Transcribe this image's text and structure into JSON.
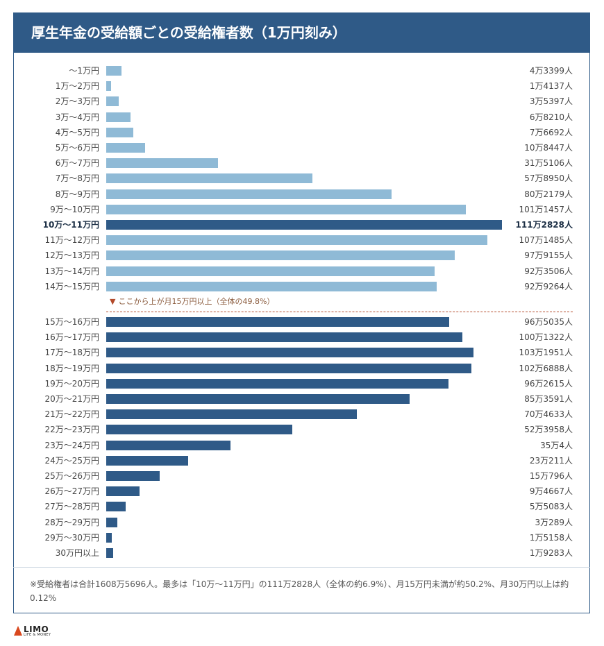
{
  "title": "厚生年金の受給額ごとの受給権者数（1万円刻み）",
  "threshold_note": "ここから上が月15万円以上（全体の49.8%）",
  "threshold_marker": "▼",
  "footnote": "※受給権者は合計1608万5696人。最多は「10万～11万円」の111万2828人（全体の約6.9%）、月15万円未満が約50.2%、月30万円以上は約0.12%",
  "logo": {
    "main": "LIMO",
    "sub": "LIFE & MONEY"
  },
  "colors": {
    "header": "#2f5a87",
    "light_bar": "#8fbad6",
    "dark_bar": "#2f5a87",
    "threshold": "#b34a2a"
  },
  "chart_data": {
    "type": "bar",
    "orientation": "horizontal",
    "title": "厚生年金の受給額ごとの受給権者数（1万円刻み）",
    "highlight_category": "10万～11万円",
    "categories": [
      "～1万円",
      "1万～2万円",
      "2万～3万円",
      "3万～4万円",
      "4万～5万円",
      "5万～6万円",
      "6万～7万円",
      "7万～8万円",
      "8万～9万円",
      "9万～10万円",
      "10万～11万円",
      "11万～12万円",
      "12万～13万円",
      "13万～14万円",
      "14万～15万円",
      "15万～16万円",
      "16万～17万円",
      "17万～18万円",
      "18万～19万円",
      "19万～20万円",
      "20万～21万円",
      "21万～22万円",
      "22万～23万円",
      "23万～24万円",
      "24万～25万円",
      "25万～26万円",
      "26万～27万円",
      "27万～28万円",
      "28万～29万円",
      "29万～30万円",
      "30万円以上"
    ],
    "values": [
      43399,
      14137,
      35397,
      68210,
      76692,
      108447,
      315106,
      578950,
      802179,
      1011457,
      1112828,
      1071485,
      979155,
      923506,
      929264,
      965035,
      1001322,
      1031951,
      1026888,
      962615,
      853591,
      704633,
      523958,
      350004,
      230211,
      150796,
      94667,
      55083,
      30289,
      15158,
      19283
    ],
    "value_labels": [
      "4万3399人",
      "1万4137人",
      "3万5397人",
      "6万8210人",
      "7万6692人",
      "10万8447人",
      "31万5106人",
      "57万8950人",
      "80万2179人",
      "101万1457人",
      "111万2828人",
      "107万1485人",
      "97万9155人",
      "92万3506人",
      "92万9264人",
      "96万5035人",
      "100万1322人",
      "103万1951人",
      "102万6888人",
      "96万2615人",
      "85万3591人",
      "70万4633人",
      "52万3958人",
      "35万4人",
      "23万211人",
      "15万796人",
      "9万4667人",
      "5万5083人",
      "3万289人",
      "1万5158人",
      "1万9283人"
    ]
  }
}
